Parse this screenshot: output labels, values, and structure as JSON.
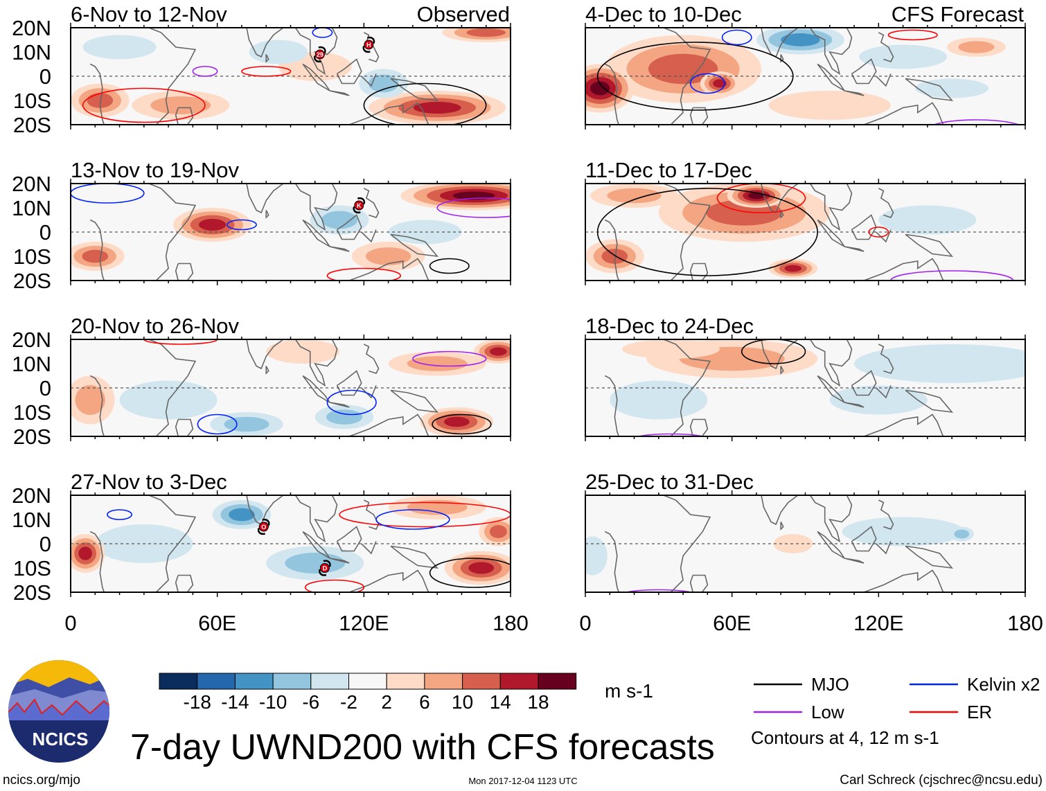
{
  "title": "7-day UWND200 with CFS forecasts",
  "observed_label": "Observed",
  "forecast_label": "CFS Forecast",
  "lat_labels": [
    "20N",
    "10N",
    "0",
    "10S",
    "20S"
  ],
  "lon_labels": [
    "0",
    "60E",
    "120E",
    "180"
  ],
  "colorbar": {
    "labels": [
      "-18",
      "-14",
      "-10",
      "-6",
      "-2",
      "2",
      "6",
      "10",
      "14",
      "18"
    ],
    "colors": [
      "#0b2d5e",
      "#2467ad",
      "#4394c4",
      "#93c5de",
      "#d2e6f0",
      "#f7f7f7",
      "#fddbc7",
      "#f4a582",
      "#d6604d",
      "#b1182b",
      "#680020"
    ],
    "units": "m s-1"
  },
  "legend": {
    "items": [
      {
        "label": "MJO",
        "color": "#000000"
      },
      {
        "label": "Kelvin x2",
        "color": "#0020ff"
      },
      {
        "label": "Low",
        "color": "#a020f0"
      },
      {
        "label": "ER",
        "color": "#ff0000"
      }
    ],
    "note": "Contours at 4, 12 m s-1"
  },
  "logo_text": "NCICS",
  "footer": {
    "url": "ncics.org/mjo",
    "timestamp": "Mon 2017-12-04 1123 UTC",
    "author": "Carl Schreck (cjschrec@ncsu.edu)"
  },
  "chart_data": {
    "type": "heatmap",
    "variable": "200-hPa zonal wind anomaly",
    "units": "m s-1",
    "lon_range": [
      0,
      180
    ],
    "lat_range": [
      -20,
      20
    ],
    "panels": [
      {
        "title": "6-Nov to 12-Nov",
        "kind": "observed",
        "features": [
          {
            "lon": 150,
            "lat": -13,
            "rlon": 28,
            "rlat": 7,
            "value": 14
          },
          {
            "lon": 12,
            "lat": -10,
            "rlon": 12,
            "rlat": 7,
            "value": 10
          },
          {
            "lon": 45,
            "lat": -12,
            "rlon": 20,
            "rlat": 6,
            "value": 6
          },
          {
            "lon": 170,
            "lat": 18,
            "rlon": 18,
            "rlat": 4,
            "value": 10
          },
          {
            "lon": 100,
            "lat": 4,
            "rlon": 15,
            "rlat": 6,
            "value": 2
          },
          {
            "lon": 20,
            "lat": 12,
            "rlon": 15,
            "rlat": 5,
            "value": -2
          },
          {
            "lon": 85,
            "lat": 10,
            "rlon": 12,
            "rlat": 5,
            "value": -2
          },
          {
            "lon": 128,
            "lat": -3,
            "rlon": 10,
            "rlat": 6,
            "value": -6
          }
        ],
        "contours": [
          {
            "type": "ER",
            "lon": 30,
            "lat": -12,
            "rlon": 25,
            "rlat": 7
          },
          {
            "type": "ER",
            "lon": 80,
            "lat": 2,
            "rlon": 10,
            "rlat": 2
          },
          {
            "type": "Low",
            "lon": 55,
            "lat": 2,
            "rlon": 5,
            "rlat": 2
          },
          {
            "type": "Kelvin x2",
            "lon": 103,
            "lat": 18,
            "rlon": 4,
            "rlat": 2
          },
          {
            "type": "MJO",
            "lon": 145,
            "lat": -12,
            "rlon": 25,
            "rlat": 9
          }
        ],
        "storms": [
          {
            "label": "29",
            "lon": 102,
            "lat": 9
          },
          {
            "label": "H",
            "lon": 122,
            "lat": 13
          }
        ]
      },
      {
        "title": "13-Nov to 19-Nov",
        "kind": "observed",
        "features": [
          {
            "lon": 58,
            "lat": 3,
            "rlon": 16,
            "rlat": 7,
            "value": 14
          },
          {
            "lon": 10,
            "lat": -10,
            "rlon": 12,
            "rlat": 6,
            "value": 10
          },
          {
            "lon": 165,
            "lat": 15,
            "rlon": 30,
            "rlat": 6,
            "value": 18
          },
          {
            "lon": 130,
            "lat": -10,
            "rlon": 15,
            "rlat": 6,
            "value": 6
          },
          {
            "lon": 110,
            "lat": 5,
            "rlon": 12,
            "rlat": 6,
            "value": -6
          },
          {
            "lon": 145,
            "lat": 0,
            "rlon": 15,
            "rlat": 5,
            "value": -2
          }
        ],
        "contours": [
          {
            "type": "Kelvin x2",
            "lon": 70,
            "lat": 3,
            "rlon": 6,
            "rlat": 2
          },
          {
            "type": "Kelvin x2",
            "lon": 15,
            "lat": 16,
            "rlon": 15,
            "rlat": 4
          },
          {
            "type": "Low",
            "lon": 170,
            "lat": 10,
            "rlon": 20,
            "rlat": 4
          },
          {
            "type": "ER",
            "lon": 120,
            "lat": -18,
            "rlon": 15,
            "rlat": 3
          },
          {
            "type": "MJO",
            "lon": 155,
            "lat": -14,
            "rlon": 8,
            "rlat": 3
          }
        ],
        "storms": [
          {
            "label": "K",
            "lon": 118,
            "lat": 11
          }
        ]
      },
      {
        "title": "20-Nov to 26-Nov",
        "kind": "observed",
        "features": [
          {
            "lon": 158,
            "lat": -14,
            "rlon": 15,
            "rlat": 6,
            "value": 14
          },
          {
            "lon": 175,
            "lat": 15,
            "rlon": 10,
            "rlat": 5,
            "value": 14
          },
          {
            "lon": 150,
            "lat": 10,
            "rlon": 20,
            "rlat": 5,
            "value": 6
          },
          {
            "lon": 8,
            "lat": -5,
            "rlon": 10,
            "rlat": 10,
            "value": 6
          },
          {
            "lon": 95,
            "lat": 15,
            "rlon": 15,
            "rlat": 5,
            "value": 2
          },
          {
            "lon": 40,
            "lat": -5,
            "rlon": 20,
            "rlat": 8,
            "value": -2
          },
          {
            "lon": 72,
            "lat": -15,
            "rlon": 15,
            "rlat": 5,
            "value": -6
          },
          {
            "lon": 112,
            "lat": -12,
            "rlon": 12,
            "rlat": 5,
            "value": -6
          }
        ],
        "contours": [
          {
            "type": "MJO",
            "lon": 160,
            "lat": -15,
            "rlon": 12,
            "rlat": 4
          },
          {
            "type": "Kelvin x2",
            "lon": 115,
            "lat": -6,
            "rlon": 10,
            "rlat": 5
          },
          {
            "type": "Low",
            "lon": 155,
            "lat": 12,
            "rlon": 15,
            "rlat": 3
          },
          {
            "type": "ER",
            "lon": 45,
            "lat": 20,
            "rlon": 15,
            "rlat": 2
          },
          {
            "type": "Kelvin x2",
            "lon": 60,
            "lat": -15,
            "rlon": 8,
            "rlat": 4
          }
        ],
        "storms": []
      },
      {
        "title": "27-Nov to 3-Dec",
        "kind": "observed",
        "features": [
          {
            "lon": 70,
            "lat": 12,
            "rlon": 12,
            "rlat": 6,
            "value": -10
          },
          {
            "lon": 30,
            "lat": 0,
            "rlon": 20,
            "rlat": 8,
            "value": -2
          },
          {
            "lon": 100,
            "lat": -8,
            "rlon": 20,
            "rlat": 7,
            "value": -6
          },
          {
            "lon": 6,
            "lat": -4,
            "rlon": 8,
            "rlat": 8,
            "value": 14
          },
          {
            "lon": 168,
            "lat": -10,
            "rlon": 15,
            "rlat": 7,
            "value": 14
          },
          {
            "lon": 150,
            "lat": 15,
            "rlon": 20,
            "rlat": 5,
            "value": 6
          },
          {
            "lon": 175,
            "lat": 5,
            "rlon": 8,
            "rlat": 6,
            "value": 10
          }
        ],
        "contours": [
          {
            "type": "ER",
            "lon": 145,
            "lat": 12,
            "rlon": 35,
            "rlat": 5
          },
          {
            "type": "Kelvin x2",
            "lon": 140,
            "lat": 10,
            "rlon": 15,
            "rlat": 4
          },
          {
            "type": "MJO",
            "lon": 165,
            "lat": -12,
            "rlon": 18,
            "rlat": 6
          },
          {
            "type": "ER",
            "lon": 108,
            "lat": -18,
            "rlon": 12,
            "rlat": 3
          },
          {
            "type": "Kelvin x2",
            "lon": 20,
            "lat": 12,
            "rlon": 5,
            "rlat": 2
          }
        ],
        "storms": [
          {
            "label": "O",
            "lon": 79,
            "lat": 7
          },
          {
            "label": "D",
            "lon": 104,
            "lat": -10
          }
        ]
      },
      {
        "title": "4-Dec to 10-Dec",
        "kind": "forecast",
        "features": [
          {
            "lon": 40,
            "lat": 3,
            "rlon": 32,
            "rlat": 14,
            "value": 10
          },
          {
            "lon": 6,
            "lat": -5,
            "rlon": 14,
            "rlat": 10,
            "value": 18
          },
          {
            "lon": 55,
            "lat": -3,
            "rlon": 8,
            "rlat": 5,
            "value": 14
          },
          {
            "lon": 100,
            "lat": -12,
            "rlon": 25,
            "rlat": 6,
            "value": 2
          },
          {
            "lon": 160,
            "lat": 12,
            "rlon": 12,
            "rlat": 4,
            "value": 6
          },
          {
            "lon": 88,
            "lat": 15,
            "rlon": 18,
            "rlat": 6,
            "value": -10
          },
          {
            "lon": 130,
            "lat": 8,
            "rlon": 18,
            "rlat": 5,
            "value": -2
          },
          {
            "lon": 150,
            "lat": -5,
            "rlon": 15,
            "rlat": 4,
            "value": -2
          }
        ],
        "contours": [
          {
            "type": "MJO",
            "lon": 45,
            "lat": 0,
            "rlon": 40,
            "rlat": 14
          },
          {
            "type": "Kelvin x2",
            "lon": 50,
            "lat": -3,
            "rlon": 7,
            "rlat": 4
          },
          {
            "type": "Kelvin x2",
            "lon": 62,
            "lat": 16,
            "rlon": 6,
            "rlat": 3
          },
          {
            "type": "ER",
            "lon": 134,
            "lat": 17,
            "rlon": 10,
            "rlat": 2
          },
          {
            "type": "Low",
            "lon": 160,
            "lat": -22,
            "rlon": 20,
            "rlat": 4
          }
        ],
        "storms": []
      },
      {
        "title": "11-Dec to 17-Dec",
        "kind": "forecast",
        "features": [
          {
            "lon": 65,
            "lat": 8,
            "rlon": 35,
            "rlat": 12,
            "value": 10
          },
          {
            "lon": 70,
            "lat": 15,
            "rlon": 12,
            "rlat": 5,
            "value": 18
          },
          {
            "lon": 12,
            "lat": -10,
            "rlon": 12,
            "rlat": 7,
            "value": 10
          },
          {
            "lon": 85,
            "lat": -15,
            "rlon": 10,
            "rlat": 4,
            "value": 14
          },
          {
            "lon": 20,
            "lat": 15,
            "rlon": 18,
            "rlat": 5,
            "value": 6
          },
          {
            "lon": 140,
            "lat": 5,
            "rlon": 20,
            "rlat": 6,
            "value": -2
          }
        ],
        "contours": [
          {
            "type": "ER",
            "lon": 72,
            "lat": 14,
            "rlon": 18,
            "rlat": 6
          },
          {
            "type": "MJO",
            "lon": 50,
            "lat": 0,
            "rlon": 45,
            "rlat": 18
          },
          {
            "type": "ER",
            "lon": 120,
            "lat": 0,
            "rlon": 4,
            "rlat": 2
          },
          {
            "type": "Low",
            "lon": 150,
            "lat": -20,
            "rlon": 25,
            "rlat": 4
          }
        ],
        "storms": []
      },
      {
        "title": "18-Dec to 24-Dec",
        "kind": "forecast",
        "features": [
          {
            "lon": 60,
            "lat": 12,
            "rlon": 35,
            "rlat": 8,
            "value": 6
          },
          {
            "lon": 35,
            "lat": 16,
            "rlon": 20,
            "rlat": 4,
            "value": 2
          },
          {
            "lon": 150,
            "lat": 10,
            "rlon": 40,
            "rlat": 8,
            "value": -2
          },
          {
            "lon": 30,
            "lat": -5,
            "rlon": 20,
            "rlat": 8,
            "value": -2
          },
          {
            "lon": 120,
            "lat": -5,
            "rlon": 20,
            "rlat": 6,
            "value": -2
          }
        ],
        "contours": [
          {
            "type": "MJO",
            "lon": 77,
            "lat": 15,
            "rlon": 13,
            "rlat": 5
          },
          {
            "type": "Low",
            "lon": 35,
            "lat": -21,
            "rlon": 15,
            "rlat": 2
          }
        ],
        "storms": []
      },
      {
        "title": "25-Dec to 31-Dec",
        "kind": "forecast",
        "features": [
          {
            "lon": 3,
            "lat": -5,
            "rlon": 6,
            "rlat": 8,
            "value": -2
          },
          {
            "lon": 130,
            "lat": 5,
            "rlon": 25,
            "rlat": 6,
            "value": -2
          },
          {
            "lon": 154,
            "lat": 4,
            "rlon": 5,
            "rlat": 3,
            "value": -6
          },
          {
            "lon": 85,
            "lat": 0,
            "rlon": 8,
            "rlat": 4,
            "value": 2
          }
        ],
        "contours": [
          {
            "type": "Low",
            "lon": 30,
            "lat": -21,
            "rlon": 15,
            "rlat": 2
          }
        ],
        "storms": []
      }
    ]
  }
}
